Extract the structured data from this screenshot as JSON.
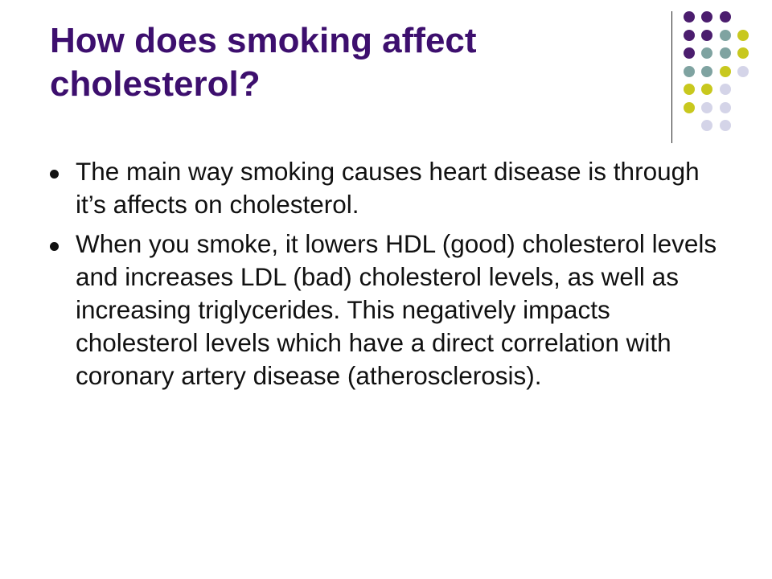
{
  "slide": {
    "title": "How does smoking affect cholesterol?",
    "bullets": [
      {
        "text": "The main way smoking causes heart disease is through it’s affects on cholesterol."
      },
      {
        "text": "When you smoke, it lowers HDL (good) cholesterol levels and increases LDL (bad) cholesterol levels, as well as increasing triglycerides. This negatively impacts cholesterol levels which have a direct correlation with coronary artery disease (atherosclerosis)."
      }
    ]
  },
  "decoration": {
    "palette": {
      "purple": "#4b1d6e",
      "teal": "#7fa3a1",
      "olive": "#c8c81e",
      "lavender": "#d4d4e8"
    },
    "dot_grid": [
      [
        "",
        "purple",
        "purple",
        "purple",
        "",
        ""
      ],
      [
        "",
        "purple",
        "purple",
        "teal",
        "olive",
        ""
      ],
      [
        "",
        "purple",
        "teal",
        "teal",
        "olive",
        ""
      ],
      [
        "",
        "teal",
        "teal",
        "olive",
        "lavender",
        ""
      ],
      [
        "",
        "olive",
        "olive",
        "lavender",
        "",
        ""
      ],
      [
        "",
        "olive",
        "lavender",
        "lavender",
        "",
        ""
      ],
      [
        "",
        "",
        "lavender",
        "lavender",
        "",
        ""
      ]
    ]
  }
}
